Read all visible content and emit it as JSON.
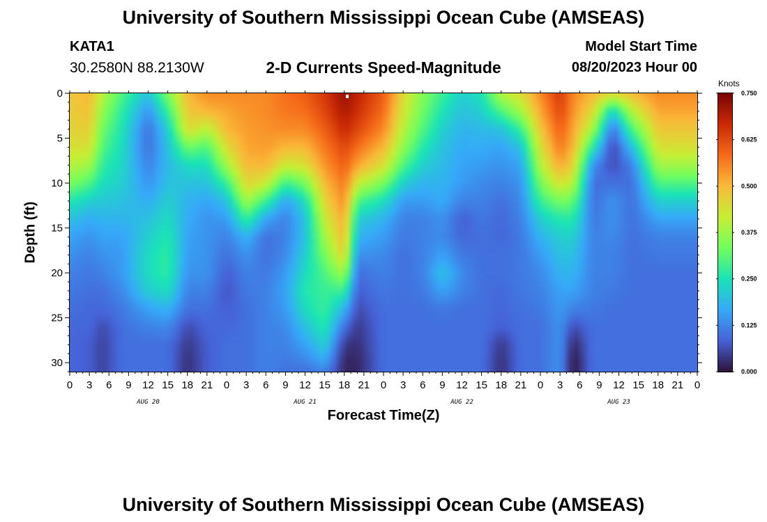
{
  "page": {
    "title": "University of Southern Mississippi Ocean Cube (AMSEAS)",
    "footer_title": "University of Southern Mississippi Ocean Cube (AMSEAS)",
    "station": {
      "name": "KATA1",
      "coords": "30.2580N  88.2130W"
    },
    "model": {
      "label": "Model Start Time",
      "value": "08/20/2023 Hour 00"
    }
  },
  "chart_data": {
    "type": "heatmap",
    "title": "2-D Currents Speed-Magnitude",
    "xlabel": "Forecast Time(Z)",
    "ylabel": "Depth (ft)",
    "x_unit": "hours from model start",
    "xlim": [
      0,
      96
    ],
    "ylim": [
      0,
      31
    ],
    "y_inverted": true,
    "x_ticks": [
      0,
      3,
      6,
      9,
      12,
      15,
      18,
      21,
      24,
      27,
      30,
      33,
      36,
      39,
      42,
      45,
      48,
      51,
      54,
      57,
      60,
      63,
      66,
      69,
      72,
      75,
      78,
      81,
      84,
      87,
      90,
      93,
      96
    ],
    "x_tick_labels": [
      "0",
      "3",
      "6",
      "9",
      "12",
      "15",
      "18",
      "21",
      "0",
      "3",
      "6",
      "9",
      "12",
      "15",
      "18",
      "21",
      "0",
      "3",
      "6",
      "9",
      "12",
      "15",
      "18",
      "21",
      "0",
      "3",
      "6",
      "9",
      "12",
      "15",
      "18",
      "21",
      "0"
    ],
    "y_ticks": [
      0,
      5,
      10,
      15,
      20,
      25,
      30
    ],
    "y_tick_labels": [
      "0",
      "5",
      "10",
      "15",
      "20",
      "25",
      "30"
    ],
    "day_labels": [
      {
        "hour": 12,
        "label": "AUG 20"
      },
      {
        "hour": 36,
        "label": "AUG 21"
      },
      {
        "hour": 60,
        "label": "AUG 22"
      },
      {
        "hour": 84,
        "label": "AUG 23"
      }
    ],
    "colorbar": {
      "unit": "Knots",
      "range": [
        0,
        0.75
      ],
      "ticks": [
        0.0,
        0.125,
        0.25,
        0.375,
        0.5,
        0.625,
        0.75
      ],
      "tick_labels": [
        "0.000",
        "0.125",
        "0.250",
        "0.375",
        "0.500",
        "0.625",
        "0.750"
      ],
      "colors": [
        "#30123b",
        "#4662d7",
        "#36aaf9",
        "#1ae4b6",
        "#72fe5e",
        "#c7ef34",
        "#faba39",
        "#f66b19",
        "#ca2a04",
        "#7a0403"
      ]
    },
    "depths": [
      0,
      2,
      4,
      6,
      8,
      10,
      12,
      14,
      16,
      18,
      20,
      22,
      24,
      26,
      28,
      30,
      31
    ],
    "profiles": [
      {
        "hour": 0,
        "speeds": [
          0.48,
          0.47,
          0.46,
          0.44,
          0.4,
          0.34,
          0.26,
          0.2,
          0.16,
          0.14,
          0.12,
          0.11,
          0.1,
          0.09,
          0.09,
          0.09,
          0.09
        ]
      },
      {
        "hour": 3,
        "speeds": [
          0.5,
          0.49,
          0.47,
          0.44,
          0.38,
          0.3,
          0.22,
          0.17,
          0.14,
          0.12,
          0.11,
          0.1,
          0.09,
          0.09,
          0.08,
          0.08,
          0.08
        ]
      },
      {
        "hour": 5,
        "speeds": [
          0.4,
          0.36,
          0.33,
          0.3,
          0.27,
          0.24,
          0.21,
          0.18,
          0.16,
          0.14,
          0.12,
          0.1,
          0.09,
          0.06,
          0.05,
          0.05,
          0.05
        ]
      },
      {
        "hour": 8,
        "speeds": [
          0.3,
          0.27,
          0.25,
          0.24,
          0.23,
          0.22,
          0.2,
          0.18,
          0.16,
          0.15,
          0.15,
          0.13,
          0.11,
          0.1,
          0.1,
          0.1,
          0.1
        ]
      },
      {
        "hour": 12,
        "speeds": [
          0.2,
          0.14,
          0.1,
          0.1,
          0.12,
          0.14,
          0.17,
          0.2,
          0.22,
          0.24,
          0.24,
          0.22,
          0.16,
          0.12,
          0.1,
          0.1,
          0.1
        ]
      },
      {
        "hour": 15,
        "speeds": [
          0.35,
          0.28,
          0.22,
          0.2,
          0.19,
          0.2,
          0.22,
          0.24,
          0.26,
          0.27,
          0.27,
          0.24,
          0.18,
          0.13,
          0.1,
          0.1,
          0.1
        ]
      },
      {
        "hour": 18,
        "speeds": [
          0.5,
          0.48,
          0.45,
          0.33,
          0.24,
          0.2,
          0.18,
          0.17,
          0.16,
          0.15,
          0.14,
          0.12,
          0.1,
          0.06,
          0.04,
          0.03,
          0.03
        ]
      },
      {
        "hour": 21,
        "speeds": [
          0.55,
          0.5,
          0.4,
          0.3,
          0.24,
          0.2,
          0.16,
          0.14,
          0.14,
          0.14,
          0.14,
          0.12,
          0.1,
          0.09,
          0.08,
          0.08,
          0.08
        ]
      },
      {
        "hour": 24,
        "speeds": [
          0.55,
          0.52,
          0.5,
          0.45,
          0.38,
          0.28,
          0.2,
          0.15,
          0.12,
          0.1,
          0.08,
          0.07,
          0.08,
          0.09,
          0.1,
          0.1,
          0.1
        ]
      },
      {
        "hour": 27,
        "speeds": [
          0.55,
          0.54,
          0.53,
          0.52,
          0.5,
          0.46,
          0.38,
          0.28,
          0.18,
          0.14,
          0.12,
          0.11,
          0.1,
          0.1,
          0.1,
          0.1,
          0.1
        ]
      },
      {
        "hour": 30,
        "speeds": [
          0.55,
          0.55,
          0.54,
          0.53,
          0.5,
          0.42,
          0.28,
          0.16,
          0.1,
          0.1,
          0.11,
          0.12,
          0.12,
          0.12,
          0.12,
          0.12,
          0.12
        ]
      },
      {
        "hour": 33,
        "speeds": [
          0.58,
          0.57,
          0.55,
          0.5,
          0.42,
          0.28,
          0.16,
          0.12,
          0.12,
          0.13,
          0.15,
          0.16,
          0.15,
          0.13,
          0.12,
          0.11,
          0.1
        ]
      },
      {
        "hour": 36,
        "speeds": [
          0.6,
          0.58,
          0.55,
          0.5,
          0.44,
          0.34,
          0.24,
          0.2,
          0.2,
          0.22,
          0.24,
          0.26,
          0.24,
          0.2,
          0.16,
          0.12,
          0.1
        ]
      },
      {
        "hour": 39,
        "speeds": [
          0.65,
          0.63,
          0.6,
          0.57,
          0.54,
          0.5,
          0.46,
          0.42,
          0.38,
          0.34,
          0.3,
          0.28,
          0.28,
          0.26,
          0.22,
          0.16,
          0.12
        ]
      },
      {
        "hour": 42,
        "speeds": [
          0.72,
          0.7,
          0.67,
          0.63,
          0.6,
          0.57,
          0.55,
          0.52,
          0.5,
          0.46,
          0.38,
          0.28,
          0.18,
          0.1,
          0.04,
          0.02,
          0.02
        ]
      },
      {
        "hour": 44,
        "speeds": [
          0.68,
          0.66,
          0.63,
          0.58,
          0.52,
          0.42,
          0.3,
          0.22,
          0.18,
          0.14,
          0.1,
          0.08,
          0.06,
          0.04,
          0.03,
          0.02,
          0.02
        ]
      },
      {
        "hour": 48,
        "speeds": [
          0.6,
          0.58,
          0.55,
          0.5,
          0.44,
          0.34,
          0.24,
          0.18,
          0.15,
          0.13,
          0.12,
          0.11,
          0.1,
          0.1,
          0.1,
          0.1,
          0.1
        ]
      },
      {
        "hour": 51,
        "speeds": [
          0.45,
          0.43,
          0.4,
          0.36,
          0.3,
          0.22,
          0.15,
          0.12,
          0.11,
          0.1,
          0.1,
          0.1,
          0.1,
          0.1,
          0.1,
          0.1,
          0.1
        ]
      },
      {
        "hour": 54,
        "speeds": [
          0.35,
          0.33,
          0.3,
          0.26,
          0.22,
          0.18,
          0.15,
          0.12,
          0.12,
          0.12,
          0.12,
          0.11,
          0.1,
          0.1,
          0.1,
          0.1,
          0.1
        ]
      },
      {
        "hour": 57,
        "speeds": [
          0.28,
          0.25,
          0.22,
          0.2,
          0.19,
          0.18,
          0.17,
          0.14,
          0.13,
          0.16,
          0.2,
          0.16,
          0.11,
          0.1,
          0.1,
          0.1,
          0.1
        ]
      },
      {
        "hour": 60,
        "speeds": [
          0.22,
          0.2,
          0.18,
          0.17,
          0.16,
          0.15,
          0.12,
          0.08,
          0.09,
          0.11,
          0.13,
          0.12,
          0.1,
          0.1,
          0.1,
          0.1,
          0.1
        ]
      },
      {
        "hour": 63,
        "speeds": [
          0.25,
          0.22,
          0.19,
          0.17,
          0.15,
          0.13,
          0.12,
          0.11,
          0.1,
          0.1,
          0.1,
          0.1,
          0.1,
          0.1,
          0.1,
          0.1,
          0.1
        ]
      },
      {
        "hour": 66,
        "speeds": [
          0.4,
          0.3,
          0.2,
          0.16,
          0.14,
          0.12,
          0.1,
          0.09,
          0.09,
          0.1,
          0.1,
          0.09,
          0.09,
          0.08,
          0.04,
          0.03,
          0.03
        ]
      },
      {
        "hour": 69,
        "speeds": [
          0.45,
          0.38,
          0.28,
          0.2,
          0.16,
          0.14,
          0.13,
          0.12,
          0.11,
          0.11,
          0.11,
          0.11,
          0.1,
          0.1,
          0.1,
          0.1,
          0.1
        ]
      },
      {
        "hour": 72,
        "speeds": [
          0.55,
          0.52,
          0.48,
          0.44,
          0.4,
          0.34,
          0.28,
          0.22,
          0.18,
          0.15,
          0.13,
          0.12,
          0.11,
          0.1,
          0.1,
          0.1,
          0.1
        ]
      },
      {
        "hour": 75,
        "speeds": [
          0.65,
          0.63,
          0.6,
          0.57,
          0.52,
          0.44,
          0.34,
          0.26,
          0.22,
          0.2,
          0.18,
          0.16,
          0.15,
          0.14,
          0.14,
          0.14,
          0.14
        ]
      },
      {
        "hour": 77,
        "speeds": [
          0.55,
          0.54,
          0.52,
          0.5,
          0.46,
          0.4,
          0.32,
          0.26,
          0.22,
          0.2,
          0.18,
          0.16,
          0.12,
          0.06,
          0.02,
          0.0,
          0.0
        ]
      },
      {
        "hour": 80,
        "speeds": [
          0.5,
          0.45,
          0.38,
          0.26,
          0.14,
          0.1,
          0.1,
          0.11,
          0.12,
          0.12,
          0.12,
          0.12,
          0.11,
          0.1,
          0.1,
          0.1,
          0.1
        ]
      },
      {
        "hour": 83,
        "speeds": [
          0.45,
          0.22,
          0.1,
          0.05,
          0.06,
          0.1,
          0.14,
          0.14,
          0.13,
          0.12,
          0.12,
          0.11,
          0.1,
          0.1,
          0.1,
          0.1,
          0.1
        ]
      },
      {
        "hour": 86,
        "speeds": [
          0.5,
          0.4,
          0.3,
          0.2,
          0.12,
          0.1,
          0.1,
          0.1,
          0.1,
          0.1,
          0.1,
          0.1,
          0.1,
          0.1,
          0.1,
          0.1,
          0.1
        ]
      },
      {
        "hour": 90,
        "speeds": [
          0.55,
          0.52,
          0.48,
          0.44,
          0.38,
          0.3,
          0.22,
          0.16,
          0.12,
          0.11,
          0.1,
          0.1,
          0.1,
          0.1,
          0.1,
          0.1,
          0.1
        ]
      },
      {
        "hour": 96,
        "speeds": [
          0.55,
          0.52,
          0.48,
          0.44,
          0.38,
          0.3,
          0.22,
          0.16,
          0.12,
          0.11,
          0.1,
          0.1,
          0.1,
          0.1,
          0.1,
          0.1,
          0.1
        ]
      }
    ]
  }
}
